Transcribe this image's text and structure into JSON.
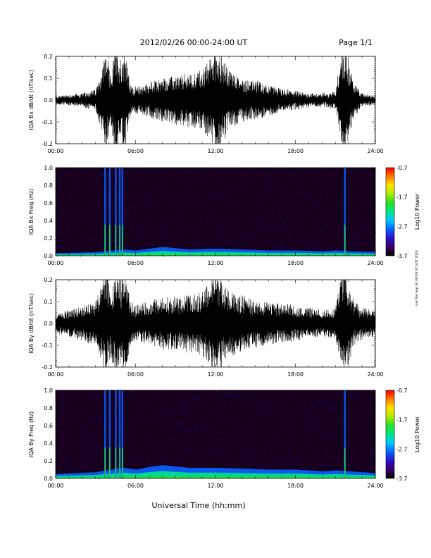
{
  "header": {
    "title": "2012/02/26  00:00-24:00 UT",
    "page": "Page 1/1"
  },
  "xaxis_title": "Universal Time (hh:mm)",
  "side_note": "mal Tue Sep 30 08:09:37 EDT 2019",
  "colorbar_label": "Log10 Power",
  "colors": {
    "trace": "#000000",
    "spectrogram_bg": "#16001e",
    "colormap": [
      "#000000",
      "#3a0066",
      "#2a10c8",
      "#0a60ff",
      "#00c8ff",
      "#00e88a",
      "#28e028",
      "#a8ec00",
      "#ffe400",
      "#ff7a00",
      "#ff0000"
    ]
  },
  "chart_data": [
    {
      "type": "line",
      "id": "bx_dbdt",
      "ylabel": "IQA Bx dB/dt (nT/sec)",
      "xlim": [
        "00:00",
        "24:00"
      ],
      "ylim": [
        -0.2,
        0.2
      ],
      "xticks": [
        "00:00",
        "06:00",
        "12:00",
        "18:00",
        "24:00"
      ],
      "yticks": [
        "-0.2",
        "-0.1",
        "0.0",
        "0.1",
        "0.2"
      ],
      "envelope": {
        "hours": [
          0,
          1,
          2,
          3,
          3.5,
          3.8,
          4.1,
          4.5,
          4.9,
          5.2,
          5.6,
          6,
          7,
          8,
          9,
          10,
          11,
          11.5,
          12,
          12.5,
          13,
          14,
          15,
          16,
          17,
          18,
          19,
          20,
          21,
          21.5,
          21.8,
          22.1,
          22.4,
          23,
          24
        ],
        "amplitude": [
          0.018,
          0.025,
          0.03,
          0.05,
          0.15,
          0.25,
          0.1,
          0.25,
          0.2,
          0.25,
          0.07,
          0.06,
          0.08,
          0.1,
          0.11,
          0.12,
          0.14,
          0.18,
          0.25,
          0.2,
          0.14,
          0.1,
          0.09,
          0.07,
          0.05,
          0.04,
          0.03,
          0.03,
          0.04,
          0.25,
          0.25,
          0.15,
          0.08,
          0.03,
          0.02
        ]
      }
    },
    {
      "type": "heatmap",
      "id": "bx_freq",
      "ylabel": "IQA Bx Freq (Hz)",
      "xlim": [
        "00:00",
        "24:00"
      ],
      "ylim": [
        0.0,
        1.0
      ],
      "xticks": [
        "00:00",
        "06:00",
        "12:00",
        "18:00",
        "24:00"
      ],
      "yticks": [
        "0.0",
        "0.2",
        "0.4",
        "0.6",
        "0.8",
        "1.0"
      ],
      "colorbar": {
        "label": "Log10 Power",
        "min": -3.7,
        "max": -0.7,
        "ticks": [
          "-0.7",
          "-1.7",
          "-2.7",
          "-3.7"
        ]
      },
      "bursts_hours": [
        3.7,
        4.05,
        4.5,
        4.8,
        5.0,
        21.7
      ],
      "lowfreq_band": {
        "hours": [
          0,
          3,
          5,
          6,
          7,
          8,
          10,
          12,
          14,
          16,
          18,
          20,
          21,
          22,
          24
        ],
        "top_hz": [
          0.03,
          0.04,
          0.07,
          0.06,
          0.08,
          0.1,
          0.07,
          0.08,
          0.07,
          0.06,
          0.06,
          0.05,
          0.06,
          0.05,
          0.04
        ]
      }
    },
    {
      "type": "line",
      "id": "by_dbdt",
      "ylabel": "IQA By dB/dt (nT/sec)",
      "xlim": [
        "00:00",
        "24:00"
      ],
      "ylim": [
        -0.2,
        0.2
      ],
      "xticks": [
        "00:00",
        "06:00",
        "12:00",
        "18:00",
        "24:00"
      ],
      "yticks": [
        "-0.2",
        "-0.1",
        "0.0",
        "0.1",
        "0.2"
      ],
      "envelope": {
        "hours": [
          0,
          1,
          2,
          3,
          3.5,
          3.8,
          4.1,
          4.5,
          4.9,
          5.2,
          5.6,
          6,
          7,
          8,
          9,
          10,
          11,
          11.5,
          12,
          12.5,
          13,
          14,
          15,
          16,
          17,
          18,
          19,
          20,
          21,
          21.5,
          21.8,
          22.1,
          22.4,
          23,
          24
        ],
        "amplitude": [
          0.04,
          0.06,
          0.08,
          0.1,
          0.2,
          0.25,
          0.15,
          0.25,
          0.2,
          0.25,
          0.1,
          0.08,
          0.1,
          0.12,
          0.12,
          0.13,
          0.15,
          0.18,
          0.25,
          0.2,
          0.15,
          0.13,
          0.11,
          0.1,
          0.09,
          0.08,
          0.07,
          0.06,
          0.07,
          0.25,
          0.25,
          0.18,
          0.1,
          0.07,
          0.06
        ]
      }
    },
    {
      "type": "heatmap",
      "id": "by_freq",
      "ylabel": "IQA By Freq (Hz)",
      "xlim": [
        "00:00",
        "24:00"
      ],
      "ylim": [
        0.0,
        1.0
      ],
      "xticks": [
        "00:00",
        "06:00",
        "12:00",
        "18:00",
        "24:00"
      ],
      "yticks": [
        "0.0",
        "0.2",
        "0.4",
        "0.6",
        "0.8",
        "1.0"
      ],
      "colorbar": {
        "label": "Log10 Power",
        "min": -3.7,
        "max": -0.7,
        "ticks": [
          "-0.7",
          "-1.7",
          "-2.7",
          "-3.7"
        ]
      },
      "bursts_hours": [
        3.7,
        4.05,
        4.5,
        4.8,
        5.0,
        21.7
      ],
      "lowfreq_band": {
        "hours": [
          0,
          3,
          5,
          6,
          7,
          8,
          10,
          12,
          14,
          16,
          18,
          20,
          21,
          22,
          24
        ],
        "top_hz": [
          0.05,
          0.07,
          0.12,
          0.1,
          0.13,
          0.15,
          0.12,
          0.12,
          0.11,
          0.1,
          0.1,
          0.08,
          0.09,
          0.08,
          0.06
        ]
      }
    }
  ]
}
